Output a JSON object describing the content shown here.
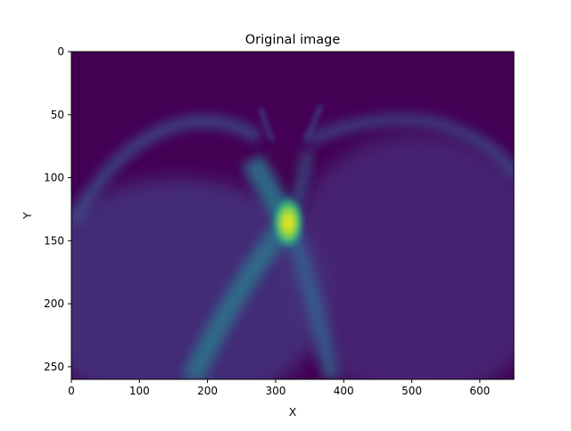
{
  "chart_data": {
    "type": "heatmap",
    "title": "Original image",
    "xlabel": "X",
    "ylabel": "Y",
    "xlim": [
      0,
      650
    ],
    "ylim": [
      260,
      0
    ],
    "y_axis_inverted": true,
    "xticks": [
      0,
      100,
      200,
      300,
      400,
      500,
      600
    ],
    "yticks": [
      0,
      50,
      100,
      150,
      200,
      250
    ],
    "colormap": "viridis",
    "grid": false,
    "legend": "none",
    "features": [
      {
        "kind": "peak",
        "x": 320,
        "y": 137,
        "intensity": 1.0
      },
      {
        "kind": "left-branch-ridge",
        "from": [
          320,
          137
        ],
        "to": [
          170,
          260
        ],
        "intensity": 0.45
      },
      {
        "kind": "right-branch-ridge",
        "from": [
          320,
          137
        ],
        "to": [
          370,
          260
        ],
        "intensity": 0.3
      },
      {
        "kind": "upper-left-ridge",
        "from": [
          320,
          137
        ],
        "to": [
          265,
          95
        ],
        "intensity": 0.45
      },
      {
        "kind": "upper-arc-left",
        "from": [
          20,
          170
        ],
        "to": [
          270,
          65
        ],
        "intensity": 0.3
      },
      {
        "kind": "upper-arc-right",
        "from": [
          350,
          65
        ],
        "to": [
          640,
          130
        ],
        "intensity": 0.25
      }
    ],
    "colors": {
      "background": "#440154",
      "low": "#46327e",
      "mid": "#21918c",
      "high": "#fde725"
    }
  }
}
